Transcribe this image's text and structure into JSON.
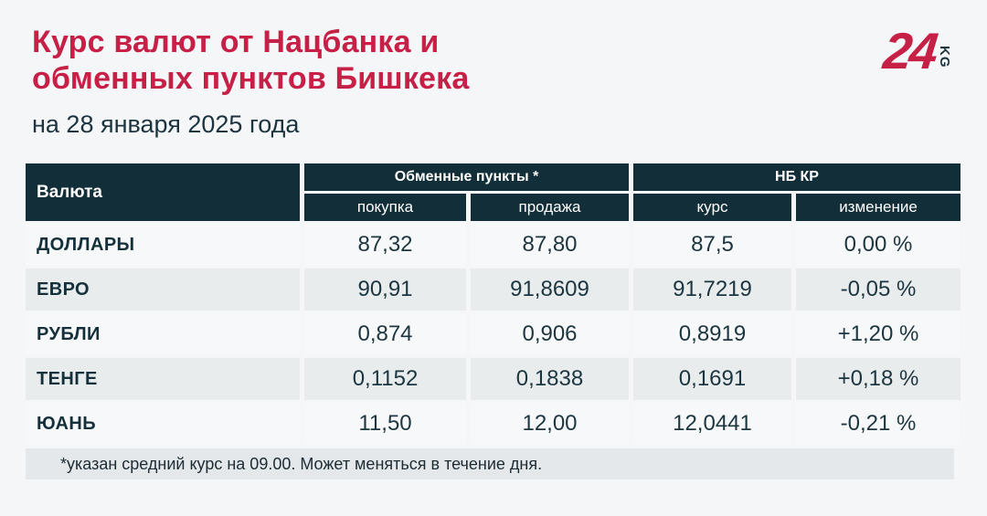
{
  "header": {
    "title_line1": "Курс валют от Нацбанка и",
    "title_line2": "обменных пунктов Бишкека",
    "subtitle": "на 28 января 2025 года"
  },
  "logo": {
    "number": "24",
    "suffix": "KG"
  },
  "table": {
    "col_currency": "Валюта",
    "group_exchange": "Обменные пункты *",
    "group_nbkr": "НБ КР",
    "sub_buy": "покупка",
    "sub_sell": "продажа",
    "sub_rate": "курс",
    "sub_change": "изменение",
    "rows": [
      {
        "currency": "ДОЛЛАРЫ",
        "buy": "87,32",
        "sell": "87,80",
        "rate": "87,5",
        "change": "0,00 %"
      },
      {
        "currency": "ЕВРО",
        "buy": "90,91",
        "sell": "91,8609",
        "rate": "91,7219",
        "change": "-0,05 %"
      },
      {
        "currency": "РУБЛИ",
        "buy": "0,874",
        "sell": "0,906",
        "rate": "0,8919",
        "change": "+1,20 %"
      },
      {
        "currency": "ТЕНГЕ",
        "buy": "0,1152",
        "sell": "0,1838",
        "rate": "0,1691",
        "change": "+0,18 %"
      },
      {
        "currency": "ЮАНЬ",
        "buy": "11,50",
        "sell": "12,00",
        "rate": "12,0441",
        "change": "-0,21 %"
      }
    ]
  },
  "footnote": {
    "text": "*указан средний курс на 09.00. Может меняться в течение дня."
  },
  "colors": {
    "accent_red": "#c62046",
    "header_teal": "#122e39",
    "text_dark": "#1c3641",
    "row_odd": "#f7f8fa",
    "row_even": "#e9eced",
    "footnote_bg": "#e4e8ea",
    "page_bg": "#f5f6f8"
  },
  "chart_data": {
    "type": "table",
    "title": "Курс валют от Нацбанка и обменных пунктов Бишкека",
    "subtitle": "на 28 января 2025 года",
    "column_groups": [
      "Валюта",
      "Обменные пункты *",
      "НБ КР"
    ],
    "columns": [
      "Валюта",
      "Обменные пункты * — покупка",
      "Обменные пункты * — продажа",
      "НБ КР — курс",
      "НБ КР — изменение (%)"
    ],
    "rows": [
      {
        "currency": "ДОЛЛАРЫ",
        "buy": 87.32,
        "sell": 87.8,
        "nbkr_rate": 87.5,
        "nbkr_change_pct": 0.0
      },
      {
        "currency": "ЕВРО",
        "buy": 90.91,
        "sell": 91.8609,
        "nbkr_rate": 91.7219,
        "nbkr_change_pct": -0.05
      },
      {
        "currency": "РУБЛИ",
        "buy": 0.874,
        "sell": 0.906,
        "nbkr_rate": 0.8919,
        "nbkr_change_pct": 1.2
      },
      {
        "currency": "ТЕНГЕ",
        "buy": 0.1152,
        "sell": 0.1838,
        "nbkr_rate": 0.1691,
        "nbkr_change_pct": 0.18
      },
      {
        "currency": "ЮАНЬ",
        "buy": 11.5,
        "sell": 12.0,
        "nbkr_rate": 12.0441,
        "nbkr_change_pct": -0.21
      }
    ],
    "footnote": "*указан средний курс на 09.00. Может меняться в течение дня."
  }
}
